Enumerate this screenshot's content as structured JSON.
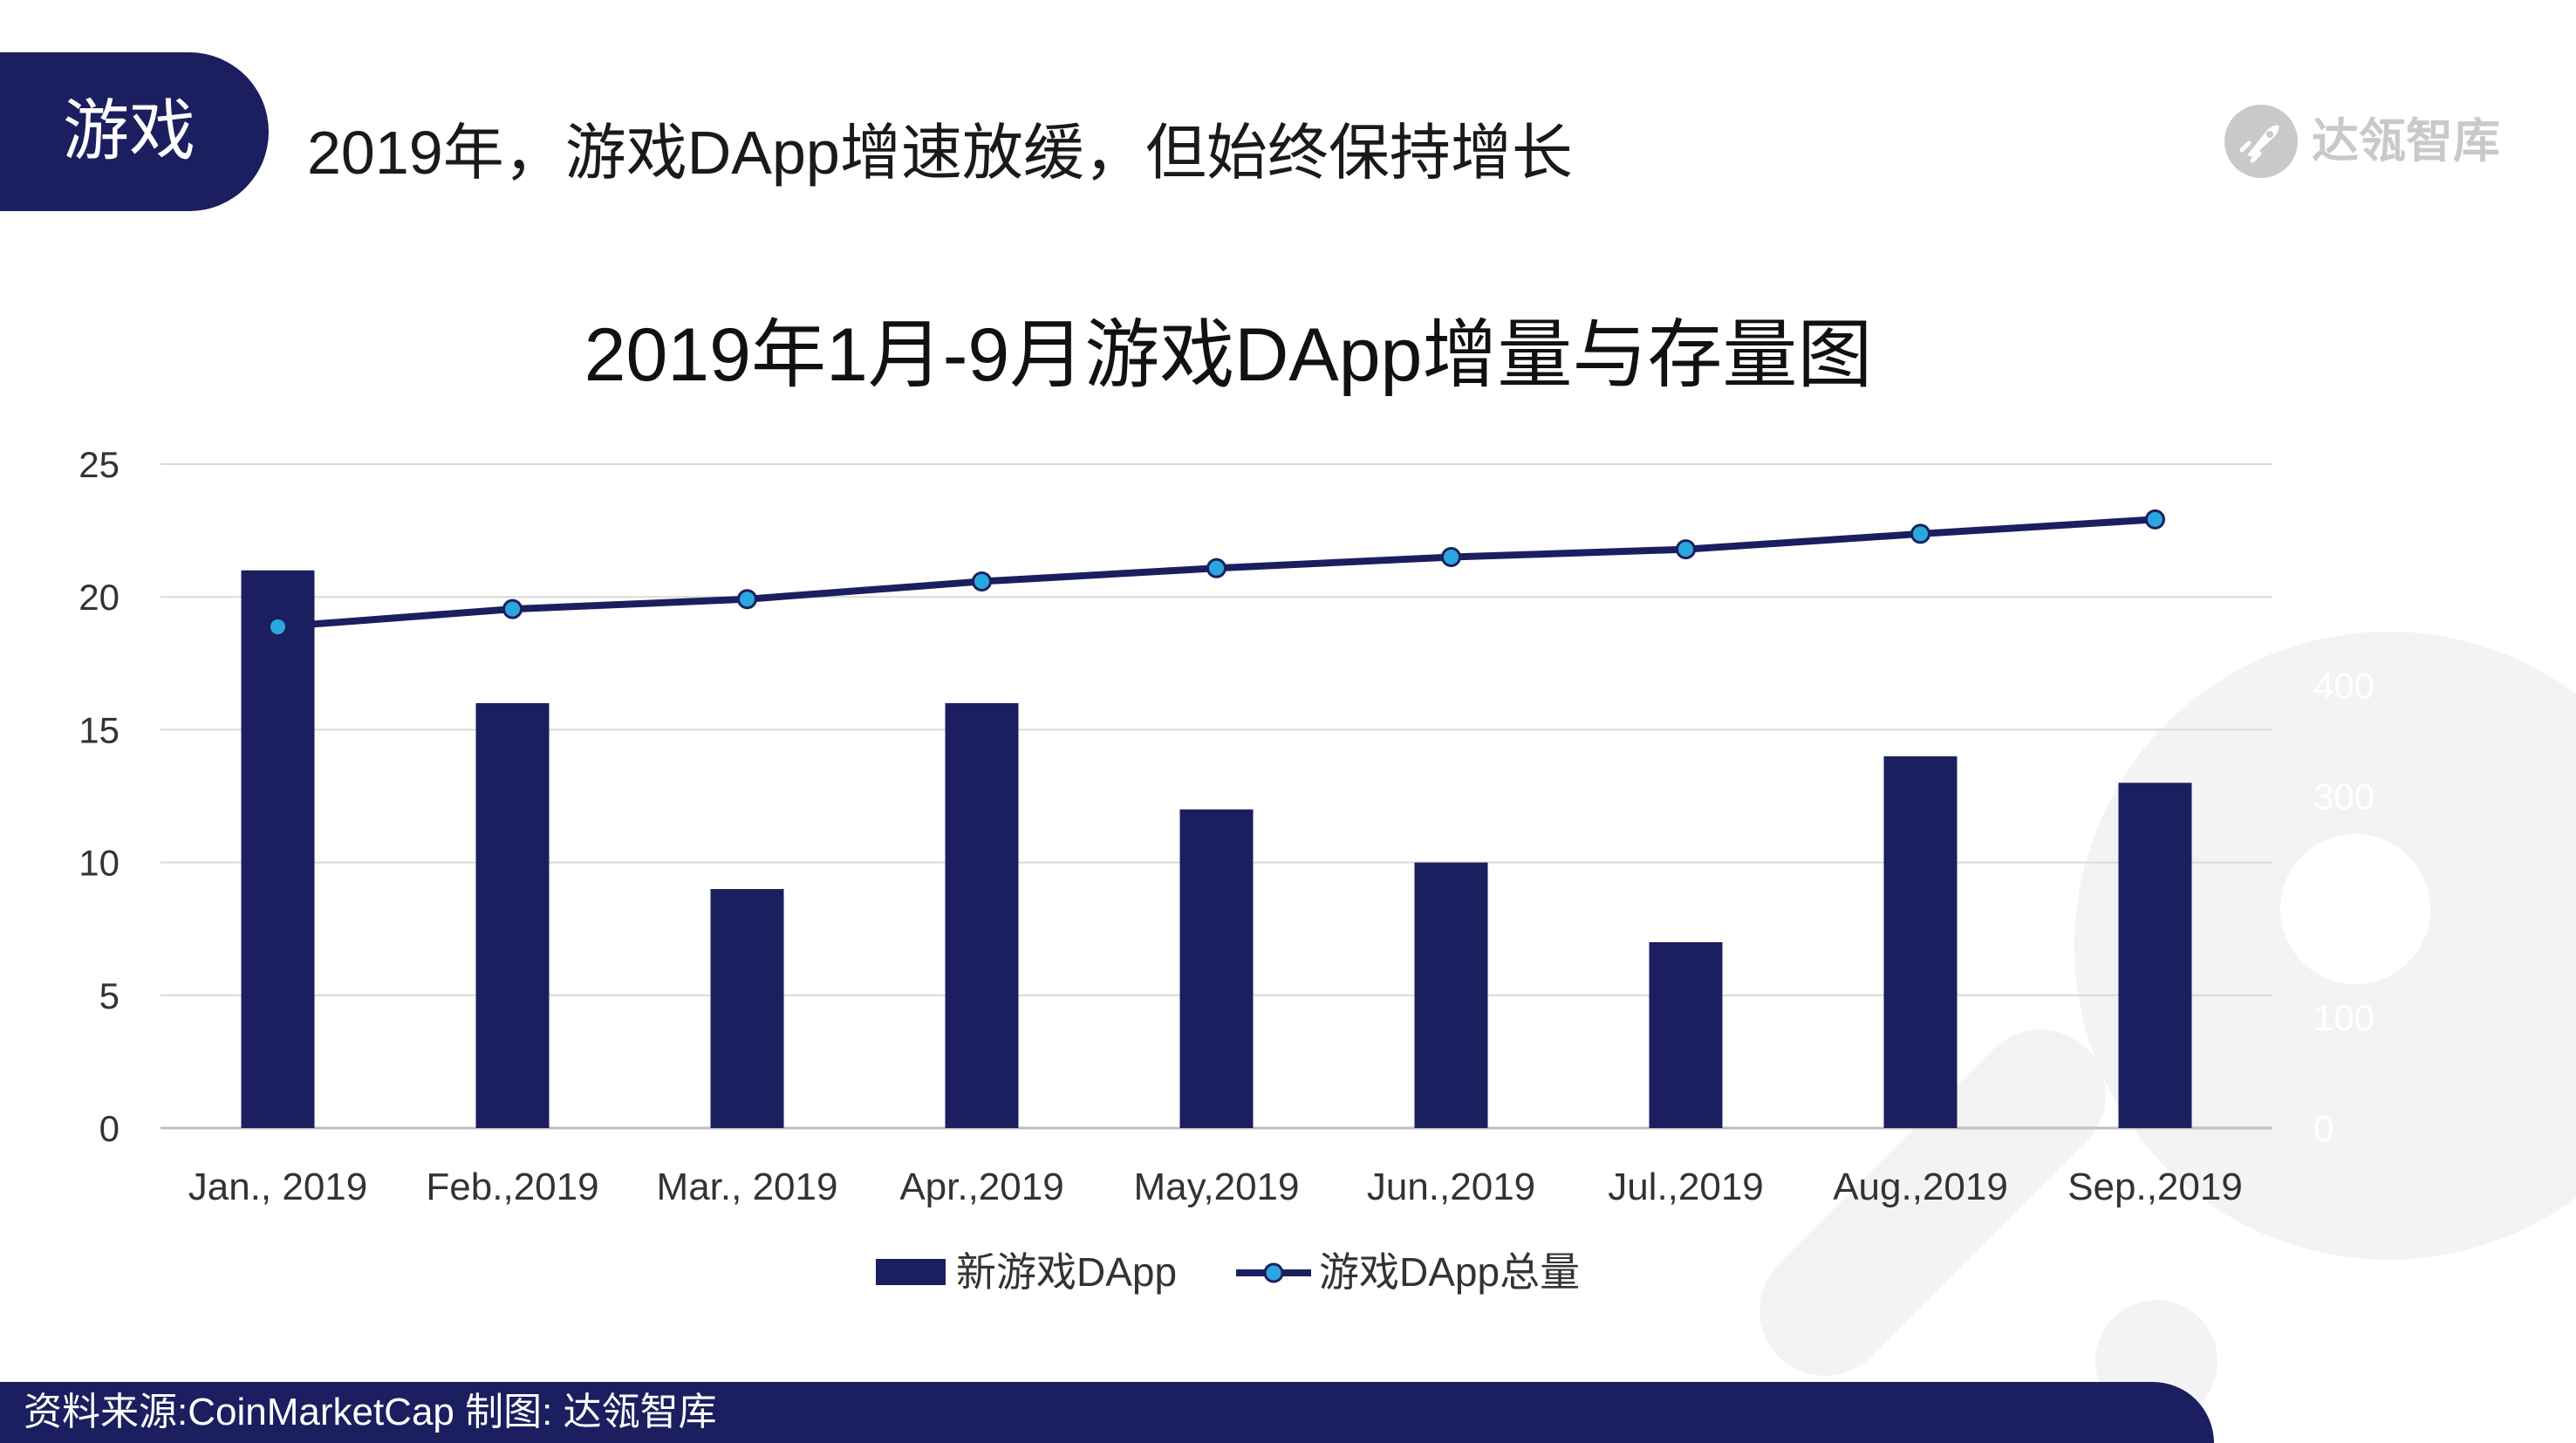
{
  "tab": {
    "label": "游戏"
  },
  "header": {
    "headline": "2019年，游戏DApp增速放缓，但始终保持增长"
  },
  "logo": {
    "text": "达瓴智库",
    "icon": "rocket-circle-icon"
  },
  "colors": {
    "navy": "#1b1f5f",
    "marker": "#2aa7df",
    "grid": "#d9d9d9",
    "axis": "#bfbfbf",
    "watermark": "#f3f3f5",
    "logo_gray": "#c9c9cc"
  },
  "chart_data": {
    "type": "bar",
    "title": "2019年1月-9月游戏DApp增量与存量图",
    "categories": [
      "Jan., 2019",
      "Feb.,2019",
      "Mar., 2019",
      "Apr.,2019",
      "May,2019",
      "Jun.,2019",
      "Jul.,2019",
      "Aug.,2019",
      "Sep.,2019"
    ],
    "series": [
      {
        "name": "新游戏DApp",
        "type": "bar",
        "axis": "primary",
        "values": [
          21,
          16,
          9,
          16,
          12,
          10,
          7,
          14,
          13
        ]
      },
      {
        "name": "游戏DApp总量",
        "type": "line",
        "axis": "secondary",
        "values": [
          453,
          469,
          478,
          494,
          506,
          516,
          523,
          537,
          550
        ]
      }
    ],
    "ylim": [
      0,
      25
    ],
    "yticks": [
      "0",
      "5",
      "10",
      "15",
      "20",
      "25"
    ],
    "y2lim": [
      0,
      600
    ],
    "y2ticks": [
      "0",
      "100",
      "200",
      "300",
      "400",
      "500",
      "600"
    ],
    "grid": true,
    "legend": "bottom",
    "xlabel": "",
    "ylabel": ""
  },
  "footer": {
    "source": "资料来源:CoinMarketCap 制图: 达瓴智库"
  }
}
